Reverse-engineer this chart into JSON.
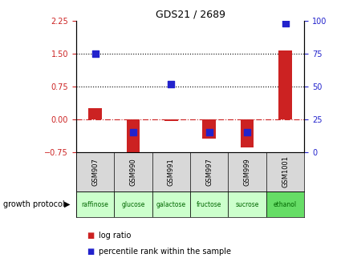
{
  "title": "GDS21 / 2689",
  "samples": [
    "GSM907",
    "GSM990",
    "GSM991",
    "GSM997",
    "GSM999",
    "GSM1001"
  ],
  "protocols": [
    "raffinose",
    "glucose",
    "galactose",
    "fructose",
    "sucrose",
    "ethanol"
  ],
  "log_ratios": [
    0.25,
    -0.75,
    -0.04,
    -0.45,
    -0.65,
    1.58
  ],
  "percentile_ranks": [
    75,
    15,
    52,
    15,
    15,
    98
  ],
  "ylim_left": [
    -0.75,
    2.25
  ],
  "ylim_right": [
    0,
    100
  ],
  "yticks_left": [
    -0.75,
    0,
    0.75,
    1.5,
    2.25
  ],
  "yticks_right": [
    0,
    25,
    50,
    75,
    100
  ],
  "hline_dotted": [
    0.75,
    1.5
  ],
  "bar_color": "#cc2222",
  "dot_color": "#2222cc",
  "protocol_colors": [
    "#ccffcc",
    "#ccffcc",
    "#ccffcc",
    "#ccffcc",
    "#ccffcc",
    "#66dd66"
  ],
  "gsm_bg": "#d8d8d8",
  "background_color": "#ffffff",
  "bar_width": 0.35,
  "dot_size": 30,
  "legend_labels": [
    "log ratio",
    "percentile rank within the sample"
  ]
}
